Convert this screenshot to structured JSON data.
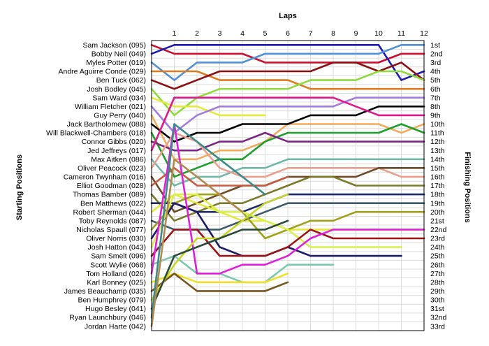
{
  "chart_data": {
    "type": "line",
    "xlabel": "Laps",
    "ylabel_left": "Starting Positions",
    "ylabel_right": "Finishing Positions",
    "x": [
      1,
      2,
      3,
      4,
      5,
      6,
      7,
      8,
      9,
      10,
      11,
      12
    ],
    "grid": true,
    "drivers": [
      "Sam Jackson (095)",
      "Bobby Neil (049)",
      "Myles Potter (019)",
      "Andre Aguirre Conde (029)",
      "Ben Tuck (062)",
      "Josh Bodley (045)",
      "Sam Ward (034)",
      "William Fletcher (021)",
      "Guy Perry (040)",
      "Jack Bartholomew (088)",
      "Will Blackwell-Chambers (018)",
      "Connor Gibbs (020)",
      "Jed Jeffreys (017)",
      "Max Aitken (086)",
      "Oliver Peacock (023)",
      "Cameron Twynham (016)",
      "Elliot Goodman (028)",
      "Thomas Bamber (089)",
      "Ben Matthews (022)",
      "Robert Sherman (044)",
      "Toby Reynolds (087)",
      "Nicholas Spaull (077)",
      "Oliver Norris (030)",
      "Josh Hatton (043)",
      "Sam Smelt (096)",
      "Scott Wylie (068)",
      "Tom Holland (026)",
      "Karl Bonney (025)",
      "James Beauchamp (035)",
      "Ben Humphrey (079)",
      "Hugo Besley (041)",
      "Ryan Launchbury (046)",
      "Jordan Harte (042)"
    ],
    "finishing_labels": [
      "1st",
      "2nd",
      "3rd",
      "4th",
      "5th",
      "6th",
      "7th",
      "8th",
      "9th",
      "10th",
      "11th",
      "12th",
      "13th",
      "14th",
      "15th",
      "16th",
      "17th",
      "18th",
      "19th",
      "20th",
      "21st",
      "22nd",
      "23rd",
      "24th",
      "25th",
      "26th",
      "27th",
      "28th",
      "29th",
      "30th",
      "31st",
      "32nd",
      "33rd"
    ],
    "series": [
      {
        "start": 1,
        "color": "#c8102e",
        "positions": [
          2,
          2,
          2,
          2,
          3,
          3,
          3,
          3,
          3,
          3,
          2,
          2
        ]
      },
      {
        "start": 2,
        "color": "#1c1cb4",
        "positions": [
          1,
          1,
          1,
          1,
          1,
          1,
          1,
          1,
          1,
          1,
          5,
          4
        ]
      },
      {
        "start": 3,
        "color": "#4f8fd8",
        "positions": [
          5,
          3,
          3,
          3,
          2,
          2,
          2,
          2,
          2,
          2,
          1,
          1
        ]
      },
      {
        "start": 4,
        "color": "#e07a1c",
        "positions": [
          4,
          4,
          5,
          5,
          5,
          5,
          6,
          6,
          6,
          6,
          6,
          6
        ]
      },
      {
        "start": 5,
        "color": "#8a1010",
        "positions": [
          6,
          5,
          4,
          4,
          4,
          4,
          4,
          3,
          3,
          4,
          3,
          5
        ]
      },
      {
        "start": 6,
        "color": "#8edc3c",
        "positions": [
          9,
          7,
          6,
          6,
          6,
          6,
          5,
          5,
          5,
          4,
          4,
          5
        ]
      },
      {
        "start": 7,
        "color": "#e6e83a",
        "positions": [
          8,
          8,
          9,
          9,
          9
        ]
      },
      {
        "start": 8,
        "color": "#a47ae0",
        "positions": [
          11,
          9,
          8,
          8,
          8,
          8,
          8,
          8,
          7,
          7,
          7,
          7
        ]
      },
      {
        "start": 9,
        "color": "#f0ac5a",
        "positions": [
          14,
          14,
          13,
          13,
          12,
          10,
          10,
          10,
          10,
          10,
          11,
          10
        ]
      },
      {
        "start": 10,
        "color": "#000000",
        "positions": [
          12,
          11,
          11,
          10,
          10,
          10,
          9,
          9,
          9,
          8,
          8,
          8
        ]
      },
      {
        "start": 11,
        "color": "#1f9e2e",
        "positions": [
          16,
          15,
          14,
          14,
          12,
          11,
          11,
          11,
          11,
          11,
          10,
          11
        ]
      },
      {
        "start": 12,
        "color": "#7a2582",
        "positions": [
          13,
          13,
          12,
          12,
          11,
          12,
          12,
          12,
          12,
          12,
          12,
          12
        ]
      },
      {
        "start": 13,
        "color": "#e0188e",
        "positions": [
          7,
          7,
          7,
          7,
          7,
          7,
          7,
          7,
          8,
          9,
          9,
          9
        ]
      },
      {
        "start": 14,
        "color": "#6fb8a8",
        "positions": [
          17,
          16,
          16,
          15,
          15,
          14,
          14,
          14,
          14,
          14,
          14,
          14
        ]
      },
      {
        "start": 15,
        "color": "#e8a08c",
        "positions": [
          11,
          12,
          15,
          16,
          16,
          15,
          15,
          15,
          15,
          15,
          16,
          16
        ]
      },
      {
        "start": 16,
        "color": "#6e4a24",
        "positions": [
          20,
          19,
          18,
          17,
          17,
          16,
          16,
          16,
          16,
          15,
          15,
          15
        ]
      },
      {
        "start": 17,
        "color": "#c85a40",
        "positions": [
          15,
          17,
          17,
          17,
          17,
          16
        ]
      },
      {
        "start": 18,
        "color": "#7a7a2a",
        "positions": [
          21,
          20,
          19,
          19,
          18,
          17,
          16,
          16,
          17,
          17,
          17,
          17
        ]
      },
      {
        "start": 19,
        "color": "#1c2a6a",
        "positions": [
          19,
          20,
          20,
          20,
          19,
          18,
          18,
          18,
          18,
          18,
          18,
          18
        ]
      },
      {
        "start": 20,
        "color": "#e6e83a",
        "positions": [
          18,
          19,
          20,
          21,
          21,
          22,
          22,
          22,
          22,
          22,
          22,
          22
        ]
      },
      {
        "start": 21,
        "color": "#3c5a6a",
        "positions": [
          22,
          22,
          22,
          21,
          20,
          19,
          19,
          19,
          19,
          19,
          19,
          19
        ]
      },
      {
        "start": 22,
        "color": "#a0a018",
        "positions": [
          19,
          18,
          18,
          20,
          23,
          22,
          21,
          21,
          20,
          20,
          20,
          20
        ]
      },
      {
        "start": 23,
        "color": "#1c1c6a",
        "positions": [
          19,
          20,
          24,
          25,
          25,
          24,
          25,
          25,
          25,
          25,
          25
        ]
      },
      {
        "start": 24,
        "color": "#d8f048",
        "positions": [
          18,
          18,
          20,
          20,
          21,
          22,
          24,
          24,
          24,
          24,
          24
        ]
      },
      {
        "start": 25,
        "color": "#9a1418",
        "positions": [
          22,
          22,
          25,
          25,
          25,
          24,
          22,
          23,
          23,
          23,
          23,
          23
        ]
      },
      {
        "start": 26,
        "color": "#7ac8b0",
        "positions": [
          25,
          27,
          27,
          28,
          28,
          26,
          26,
          26
        ]
      },
      {
        "start": 27,
        "color": "#e020d8",
        "positions": [
          10,
          27,
          27,
          26,
          26,
          25,
          23,
          22,
          22,
          22,
          22,
          22
        ]
      },
      {
        "start": 28,
        "color": "#f0e028",
        "positions": [
          27,
          28,
          28,
          28,
          28,
          27
        ]
      },
      {
        "start": 29,
        "color": "#7a5420",
        "positions": [
          27,
          29,
          29,
          29,
          29,
          28
        ]
      },
      {
        "start": 30,
        "color": "#c8d428",
        "positions": [
          26,
          23,
          23,
          21,
          19,
          18
        ]
      },
      {
        "start": 31,
        "color": "#2a4a3a",
        "positions": [
          25,
          24,
          23,
          22,
          22,
          21
        ]
      },
      {
        "start": 32,
        "color": "#3c8a8a",
        "positions": [
          10,
          12,
          14,
          16,
          18
        ]
      },
      {
        "start": 33,
        "color": "#b08a50",
        "positions": [
          14,
          16,
          18,
          20
        ]
      }
    ]
  }
}
